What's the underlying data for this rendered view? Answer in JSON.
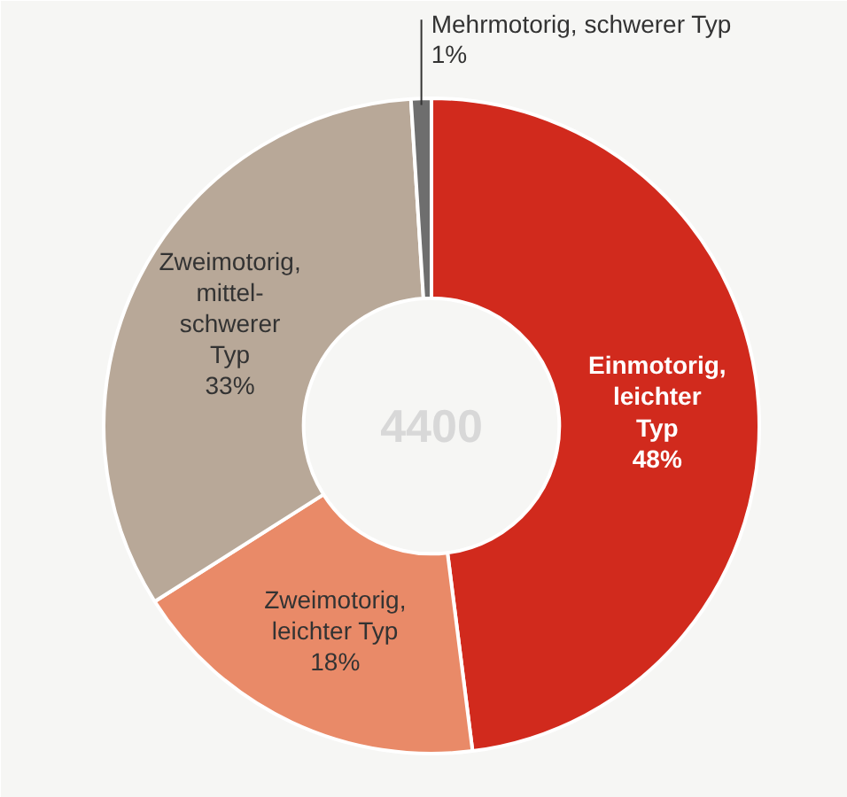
{
  "chart_data": {
    "type": "donut",
    "categories": [
      "Einmotorig,\nleichter\nTyp",
      "Zweimotorig,\nleichter Typ",
      "Zweimotorig,\nmittel-\nschwerer\nTyp",
      "Mehrmotorig, schwerer Typ"
    ],
    "values": [
      48,
      18,
      33,
      1
    ],
    "value_labels": [
      "48%",
      "18%",
      "33%",
      "1%"
    ],
    "colors": [
      "#d12a1d",
      "#e98a68",
      "#b8a898",
      "#6e6e6e"
    ],
    "annotations": [
      "4400"
    ]
  }
}
